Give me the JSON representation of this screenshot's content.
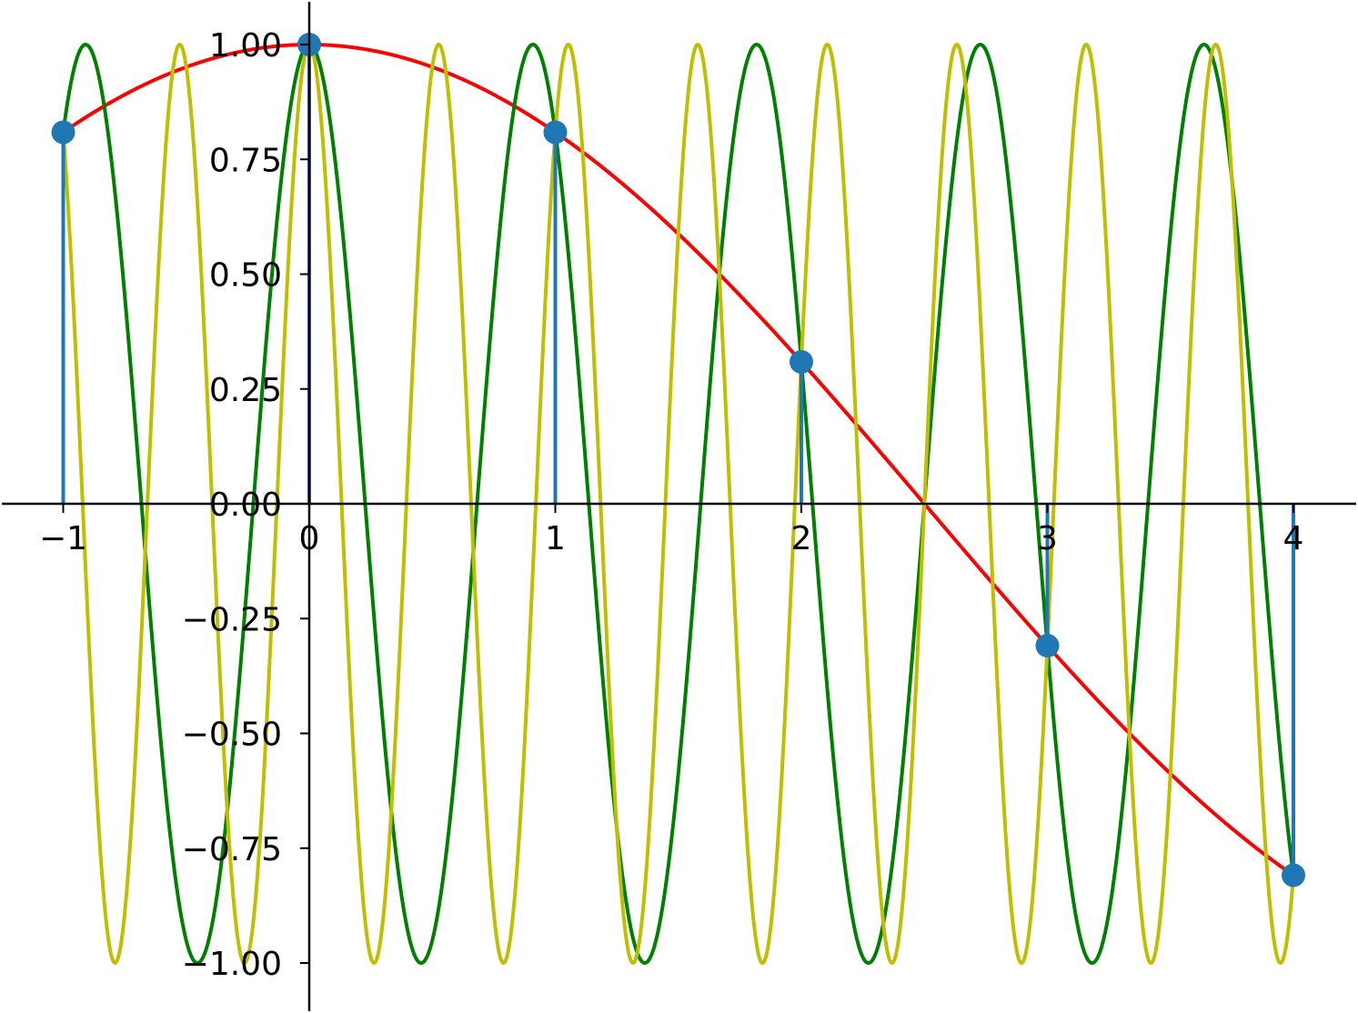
{
  "chart_data": {
    "type": "line",
    "title": "",
    "xlabel": "",
    "ylabel": "",
    "xlim": [
      -1.25,
      4.25
    ],
    "ylim": [
      -1.1,
      1.1
    ],
    "x_ticks": [
      {
        "value": -1,
        "label": "−1"
      },
      {
        "value": 0,
        "label": "0"
      },
      {
        "value": 1,
        "label": "1"
      },
      {
        "value": 2,
        "label": "2"
      },
      {
        "value": 3,
        "label": "3"
      },
      {
        "value": 4,
        "label": "4"
      }
    ],
    "y_ticks": [
      {
        "value": 1.0,
        "label": "1.00"
      },
      {
        "value": 0.75,
        "label": "0.75"
      },
      {
        "value": 0.5,
        "label": "0.50"
      },
      {
        "value": 0.25,
        "label": "0.25"
      },
      {
        "value": 0.0,
        "label": "0.00"
      },
      {
        "value": -0.25,
        "label": "−0.25"
      },
      {
        "value": -0.5,
        "label": "−0.50"
      },
      {
        "value": -0.75,
        "label": "−0.75"
      },
      {
        "value": -1.0,
        "label": "−1.00"
      }
    ],
    "axes_cross_at_origin": true,
    "grid": false,
    "series": [
      {
        "kind": "line",
        "color": "#ff0000",
        "function": "cos(0.2*pi*x)",
        "frequency": 0.1,
        "x_range": [
          -1,
          4
        ]
      },
      {
        "kind": "line",
        "color": "#008000",
        "function": "cos(2.2*pi*x)",
        "frequency": 1.1,
        "x_range": [
          -1,
          4
        ]
      },
      {
        "kind": "line",
        "color": "#bfbf00",
        "function": "cos(3.8*pi*x)",
        "frequency": 1.9,
        "x_range": [
          -1,
          4
        ]
      },
      {
        "kind": "stem",
        "color": "#1f77b4",
        "x": [
          -1,
          0,
          1,
          2,
          3,
          4
        ],
        "y": [
          0.809,
          1.0,
          0.809,
          0.309,
          -0.309,
          -0.809
        ]
      }
    ]
  }
}
